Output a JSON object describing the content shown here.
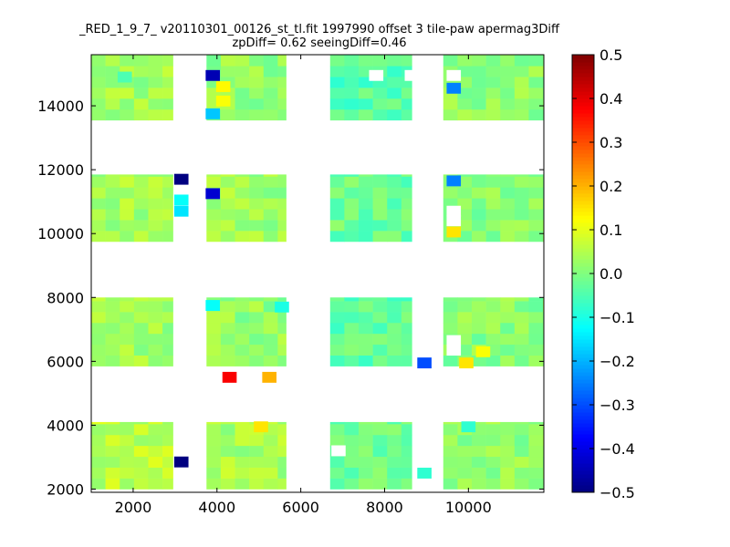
{
  "chart_data": {
    "type": "heatmap",
    "title": "_RED_1_9_7_ v20110301_00126_st_tl.fit 1997990 offset 3 tile-paw apermag3Diff",
    "subtitle": "zpDiff= 0.62 seeingDiff=0.46",
    "xlabel": "",
    "ylabel": "",
    "xlim": [
      1000,
      11800
    ],
    "ylim": [
      1900,
      15600
    ],
    "xticks": [
      2000,
      4000,
      6000,
      8000,
      10000
    ],
    "yticks": [
      2000,
      4000,
      6000,
      8000,
      10000,
      12000,
      14000
    ],
    "colormap": "jet",
    "clim": [
      -0.5,
      0.5
    ],
    "colorbar_ticks": [
      -0.5,
      -0.4,
      -0.3,
      -0.2,
      -0.1,
      0.0,
      0.1,
      0.2,
      0.3,
      0.4,
      0.5
    ],
    "colorbar_tick_labels": [
      "−0.5",
      "−0.4",
      "−0.3",
      "−0.2",
      "−0.1",
      "0.0",
      "0.1",
      "0.2",
      "0.3",
      "0.4",
      "0.5"
    ],
    "cell_size": 340,
    "grid": false,
    "x_bands": [
      [
        1000,
        2950
      ],
      [
        3750,
        5650
      ],
      [
        6700,
        8650
      ],
      [
        9400,
        11800
      ]
    ],
    "y_bands": [
      [
        2000,
        4100
      ],
      [
        5850,
        8000
      ],
      [
        9750,
        11850
      ],
      [
        13550,
        15600
      ]
    ],
    "band_values": [
      [
        0.06,
        0.04,
        -0.02,
        0.02
      ],
      [
        0.03,
        0.02,
        -0.03,
        0.01
      ],
      [
        0.04,
        0.03,
        -0.02,
        0.01
      ],
      [
        0.03,
        0.02,
        -0.04,
        0.02
      ]
    ],
    "cells": [
      {
        "x": 3150,
        "y": 2850,
        "v": -0.5
      },
      {
        "x": 3150,
        "y": 11700,
        "v": -0.5
      },
      {
        "x": 3900,
        "y": 14950,
        "v": -0.45
      },
      {
        "x": 3900,
        "y": 11250,
        "v": -0.42
      },
      {
        "x": 3150,
        "y": 10700,
        "v": -0.15
      },
      {
        "x": 3150,
        "y": 11050,
        "v": -0.12
      },
      {
        "x": 3900,
        "y": 13750,
        "v": -0.18
      },
      {
        "x": 4300,
        "y": 5500,
        "v": 0.38
      },
      {
        "x": 5250,
        "y": 5500,
        "v": 0.2
      },
      {
        "x": 8950,
        "y": 5950,
        "v": -0.3
      },
      {
        "x": 9650,
        "y": 11650,
        "v": -0.25
      },
      {
        "x": 9650,
        "y": 14550,
        "v": -0.25
      },
      {
        "x": 9650,
        "y": 10050,
        "v": 0.15
      },
      {
        "x": 9950,
        "y": 5950,
        "v": 0.15
      },
      {
        "x": 10350,
        "y": 6300,
        "v": 0.12
      },
      {
        "x": 4150,
        "y": 14600,
        "v": 0.13
      },
      {
        "x": 4150,
        "y": 14150,
        "v": 0.12
      },
      {
        "x": 5050,
        "y": 3950,
        "v": 0.15
      },
      {
        "x": 3900,
        "y": 7750,
        "v": -0.12
      },
      {
        "x": 5550,
        "y": 7700,
        "v": -0.1
      },
      {
        "x": 10000,
        "y": 3950,
        "v": -0.08
      },
      {
        "x": 8950,
        "y": 2500,
        "v": -0.08
      },
      {
        "x": 1800,
        "y": 14900,
        "v": -0.05
      }
    ],
    "missing_cells": [
      {
        "x": 7800,
        "y": 14950
      },
      {
        "x": 8650,
        "y": 14950
      },
      {
        "x": 9650,
        "y": 14950
      },
      {
        "x": 9650,
        "y": 10400
      },
      {
        "x": 9650,
        "y": 10700
      },
      {
        "x": 9650,
        "y": 6350
      },
      {
        "x": 9650,
        "y": 6650
      },
      {
        "x": 6900,
        "y": 3200
      },
      {
        "x": 3150,
        "y": 3500
      },
      {
        "x": 3150,
        "y": 3850
      },
      {
        "x": 3150,
        "y": 3200
      }
    ]
  }
}
